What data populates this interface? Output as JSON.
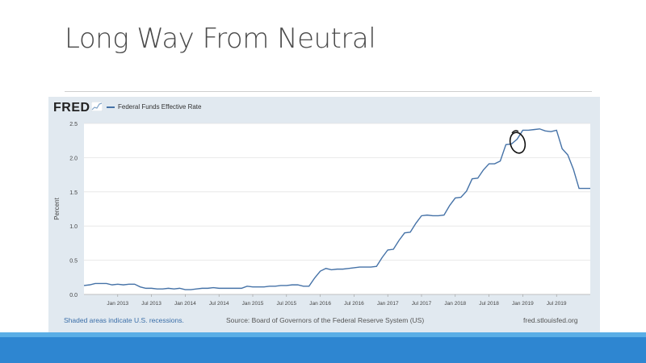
{
  "slide": {
    "title": "Long Way From Neutral"
  },
  "fred": {
    "logo_text": "FRED",
    "footer_left": "Shaded areas indicate U.S. recessions.",
    "footer_source": "Source: Board of Governors of the Federal Reserve System (US)",
    "footer_site": "fred.stlouisfed.org"
  },
  "colors": {
    "line": "#4572a7",
    "panel": "#e1e9f0",
    "bar": "#2e86d1"
  },
  "chart_data": {
    "type": "line",
    "title": "",
    "ylabel": "Percent",
    "xlabel": "",
    "ylim": [
      0,
      2.5
    ],
    "yticks": [
      "0.0",
      "0.5",
      "1.0",
      "1.5",
      "2.0",
      "2.5"
    ],
    "xticks": [
      "Jan 2013",
      "Jul 2013",
      "Jan 2014",
      "Jul 2014",
      "Jan 2015",
      "Jul 2015",
      "Jan 2016",
      "Jul 2016",
      "Jan 2017",
      "Jul 2017",
      "Jan 2018",
      "Jul 2018",
      "Jan 2019",
      "Jul 2019"
    ],
    "series": [
      {
        "name": "Federal Funds Effective Rate",
        "start": "Jul 2012",
        "end": "Mar 2020",
        "frequency": "monthly",
        "values": [
          0.13,
          0.14,
          0.16,
          0.16,
          0.16,
          0.14,
          0.15,
          0.14,
          0.15,
          0.15,
          0.11,
          0.09,
          0.09,
          0.08,
          0.08,
          0.09,
          0.08,
          0.09,
          0.07,
          0.07,
          0.08,
          0.09,
          0.09,
          0.1,
          0.09,
          0.09,
          0.09,
          0.09,
          0.09,
          0.12,
          0.11,
          0.11,
          0.11,
          0.12,
          0.12,
          0.13,
          0.13,
          0.14,
          0.14,
          0.12,
          0.12,
          0.24,
          0.34,
          0.38,
          0.36,
          0.37,
          0.37,
          0.38,
          0.39,
          0.4,
          0.4,
          0.4,
          0.41,
          0.54,
          0.65,
          0.66,
          0.79,
          0.9,
          0.91,
          1.04,
          1.15,
          1.16,
          1.15,
          1.15,
          1.16,
          1.3,
          1.41,
          1.42,
          1.51,
          1.69,
          1.7,
          1.82,
          1.91,
          1.91,
          1.95,
          2.19,
          2.2,
          2.27,
          2.4,
          2.4,
          2.41,
          2.42,
          2.39,
          2.38,
          2.4,
          2.13,
          2.04,
          1.83,
          1.55,
          1.55,
          1.55
        ]
      }
    ],
    "annotation": "hand-drawn circle around Dec 2018"
  }
}
